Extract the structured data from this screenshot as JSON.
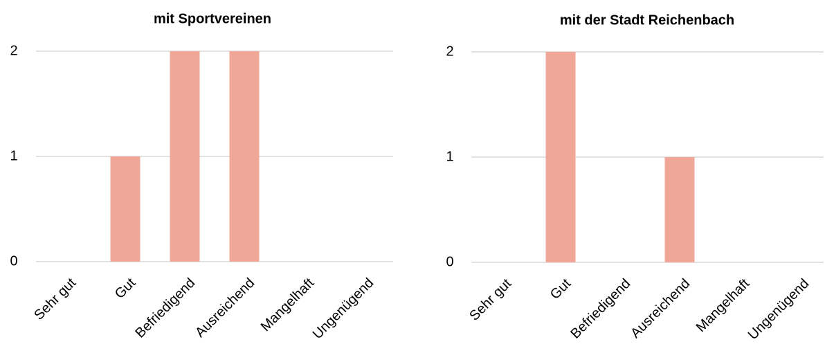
{
  "chart_data": [
    {
      "type": "bar",
      "title": "mit Sportvereinen",
      "categories": [
        "Sehr gut",
        "Gut",
        "Befriedigend",
        "Ausreichend",
        "Mangelhaft",
        "Ungenügend"
      ],
      "values": [
        0,
        1,
        2,
        2,
        0,
        0
      ],
      "color": "#f0a797",
      "ylim": [
        0,
        2
      ],
      "yticks": [
        0,
        1,
        2
      ],
      "grid": true
    },
    {
      "type": "bar",
      "title": "mit der Stadt Reichenbach",
      "categories": [
        "Sehr gut",
        "Gut",
        "Befriedigend",
        "Ausreichend",
        "Mangelhaft",
        "Ungenügend"
      ],
      "values": [
        0,
        2,
        0,
        1,
        0,
        0
      ],
      "color": "#f0a797",
      "ylim": [
        0,
        2
      ],
      "yticks": [
        0,
        1,
        2
      ],
      "grid": true
    }
  ]
}
